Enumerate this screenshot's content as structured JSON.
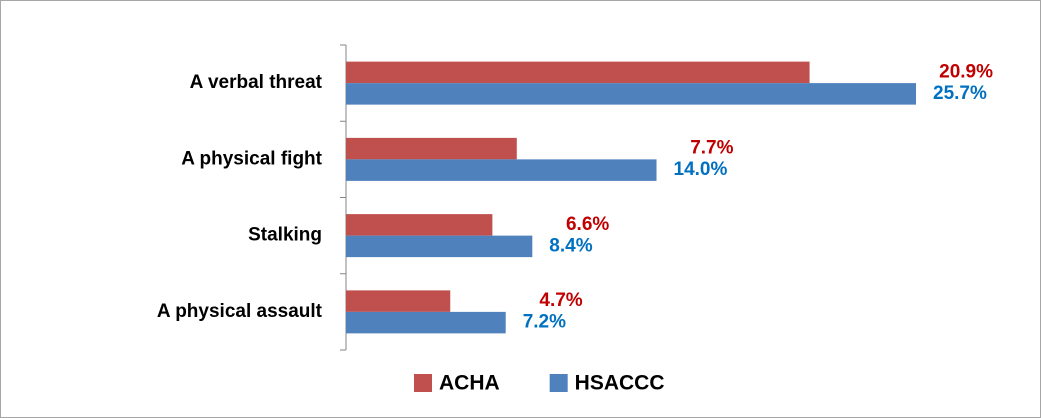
{
  "chart_data": {
    "type": "barh",
    "categories": [
      "A verbal threat",
      "A physical fight",
      "Stalking",
      "A physical assault"
    ],
    "series": [
      {
        "name": "ACHA",
        "color": "#c0504d",
        "label_color": "#c00000",
        "values": [
          20.9,
          7.7,
          6.6,
          4.7
        ],
        "value_labels": [
          "20.9%",
          "7.7%",
          "6.6%",
          "4.7%"
        ]
      },
      {
        "name": "HSACCC",
        "color": "#4f81bd",
        "label_color": "#0070c0",
        "values": [
          25.7,
          14.0,
          8.4,
          7.2
        ],
        "value_labels": [
          "25.7%",
          "14.0%",
          "8.4%",
          "7.2%"
        ]
      }
    ],
    "legend": "bottom"
  }
}
